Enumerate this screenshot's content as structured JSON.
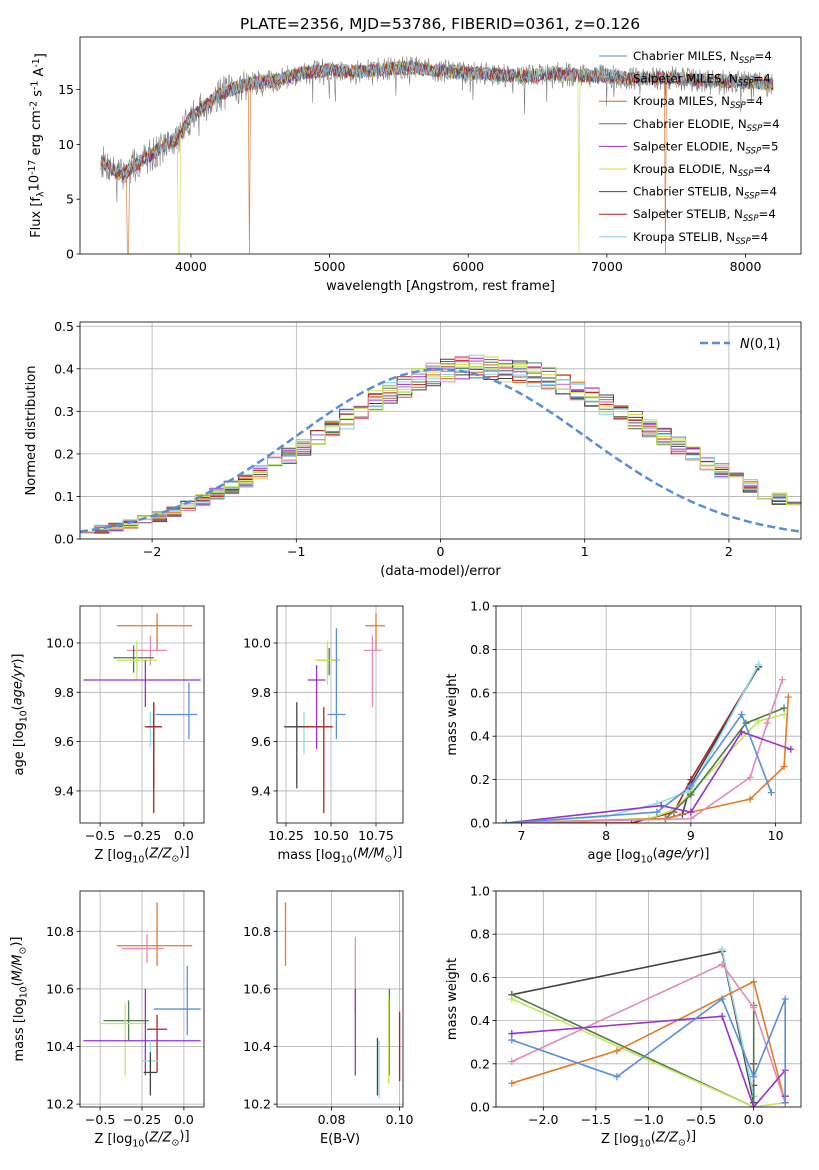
{
  "suptitle": "PLATE=2356, MJD=53786, FIBERID=0361, z=0.126",
  "colors": {
    "Chabrier MILES": "#5b8fb5",
    "Salpeter MILES": "#7f7f7f",
    "Kroupa MILES": "#d2691e",
    "Chabrier ELODIE": "#4f7a4f",
    "Salpeter ELODIE": "#9932cc",
    "Kroupa ELODIE": "#d6d64a",
    "Chabrier STELIB": "#444444",
    "Salpeter STELIB": "#b22222",
    "Kroupa STELIB": "#87ceeb",
    "gauss": "#5a8ed6",
    "est_blue": "#5a8ed6",
    "est_orange": "#e07b28",
    "est_pink": "#e38bb8",
    "est_green": "#4f7a4f",
    "est_purple": "#9932cc",
    "est_lime": "#c4e85a",
    "est_cyan": "#8fe0e8",
    "est_dark": "#444444",
    "est_red": "#b22222"
  },
  "chart_data": [
    {
      "id": "spectrum",
      "type": "line",
      "xlabel": "wavelength [Angstrom, rest frame]",
      "ylabel": "Flux [f$_\\lambda$10$^{-17}$ erg cm$^{-2}$ s$^{-1}$ A$^{-1}$]",
      "xlim": [
        3200,
        8400
      ],
      "ylim": [
        0,
        19.8
      ],
      "xticks": [
        4000,
        5000,
        6000,
        7000,
        8000
      ],
      "yticks": [
        0,
        5,
        10,
        15
      ],
      "grid": false,
      "legend_position": "upper right",
      "observed_envelope": {
        "x": [
          3350,
          3500,
          3700,
          3900,
          4000,
          4200,
          4400,
          4600,
          4800,
          5000,
          5200,
          5400,
          5600,
          5800,
          6000,
          6200,
          6400,
          6600,
          6800,
          7000,
          7200,
          7400,
          7600,
          7800,
          8000,
          8200
        ],
        "y": [
          8.5,
          7.2,
          9.0,
          10.5,
          12.5,
          14.5,
          15.5,
          15.8,
          16.5,
          16.8,
          16.6,
          16.9,
          17.0,
          16.7,
          16.5,
          16.4,
          16.2,
          16.5,
          16.3,
          16.2,
          16.0,
          16.1,
          15.9,
          15.8,
          15.7,
          15.5
        ]
      },
      "series": [
        {
          "name": "Chabrier MILES",
          "n_ssp": "4"
        },
        {
          "name": "Salpeter MILES",
          "n_ssp": "4"
        },
        {
          "name": "Kroupa MILES",
          "n_ssp": "4",
          "dropout_x": [
            3545,
            4420,
            7420
          ]
        },
        {
          "name": "Chabrier ELODIE",
          "n_ssp": "4"
        },
        {
          "name": "Salpeter ELODIE",
          "n_ssp": "5"
        },
        {
          "name": "Kroupa ELODIE",
          "n_ssp": "4",
          "dropout_x": [
            3915,
            6800
          ]
        },
        {
          "name": "Chabrier STELIB",
          "n_ssp": "4"
        },
        {
          "name": "Salpeter STELIB",
          "n_ssp": "4"
        },
        {
          "name": "Kroupa STELIB",
          "n_ssp": "4"
        }
      ]
    },
    {
      "id": "residual_hist",
      "type": "step",
      "xlabel": "(data-model)/error",
      "ylabel": "Normed distribution",
      "xlim": [
        -2.5,
        2.5
      ],
      "ylim": [
        0,
        0.51
      ],
      "xticks": [
        -2,
        -1,
        0,
        1,
        2
      ],
      "yticks": [
        0.0,
        0.1,
        0.2,
        0.3,
        0.4,
        0.5
      ],
      "grid": true,
      "legend_position": "upper right",
      "gauss_label": "$\\mathcal{N}(0,1)$",
      "bin_width": 0.1,
      "x_start": -2.5,
      "base_values": [
        0.018,
        0.022,
        0.028,
        0.035,
        0.043,
        0.053,
        0.065,
        0.078,
        0.091,
        0.106,
        0.121,
        0.138,
        0.156,
        0.175,
        0.195,
        0.216,
        0.238,
        0.26,
        0.282,
        0.303,
        0.324,
        0.342,
        0.359,
        0.373,
        0.385,
        0.394,
        0.4,
        0.404,
        0.402,
        0.398,
        0.394,
        0.386,
        0.376,
        0.364,
        0.35,
        0.335,
        0.318,
        0.3,
        0.28,
        0.26,
        0.24,
        0.22,
        0.199,
        0.18,
        0.16,
        0.142,
        0.125,
        0.109,
        0.094,
        0.08,
        0.066,
        0.054,
        0.044,
        0.036,
        0.029,
        0.024,
        0.02,
        0.017,
        0.015,
        0.014
      ]
    },
    {
      "id": "age_vs_Z",
      "type": "errorbar",
      "xlabel": "Z [log$_{10}$($Z/Z_\\odot$)]",
      "ylabel": "age  [log$_{10}$($age/yr$)]",
      "xlim": [
        -0.62,
        0.12
      ],
      "ylim": [
        9.27,
        10.15
      ],
      "xticks": [
        -0.5,
        -0.25,
        0.0
      ],
      "yticks": [
        9.4,
        9.6,
        9.8,
        10.0
      ],
      "grid": true,
      "points": [
        {
          "c": "est_orange",
          "x": -0.16,
          "xerr": [
            0.24,
            0.21
          ],
          "y": 10.07,
          "yerr": [
            0.1,
            0.05
          ]
        },
        {
          "c": "est_pink",
          "x": -0.2,
          "xerr": [
            0.14,
            0.1
          ],
          "y": 9.97,
          "yerr": [
            0.06,
            0.06
          ]
        },
        {
          "c": "est_green",
          "x": -0.3,
          "xerr": [
            0.12,
            0.12
          ],
          "y": 9.94,
          "yerr": [
            0.06,
            0.05
          ]
        },
        {
          "c": "est_lime",
          "x": -0.28,
          "xerr": [
            0.12,
            0.12
          ],
          "y": 9.93,
          "yerr": [
            0.08,
            0.08
          ]
        },
        {
          "c": "est_purple",
          "x": -0.23,
          "xerr": [
            0.37,
            0.33
          ],
          "y": 9.85,
          "yerr": [
            0.11,
            0.08
          ]
        },
        {
          "c": "est_blue",
          "x": 0.03,
          "xerr": [
            0.2,
            0.05
          ],
          "y": 9.71,
          "yerr": [
            0.1,
            0.13
          ]
        },
        {
          "c": "est_cyan",
          "x": -0.2,
          "xerr": [
            0.04,
            0.04
          ],
          "y": 9.66,
          "yerr": [
            0.08,
            0.06
          ]
        },
        {
          "c": "est_dark",
          "x": -0.18,
          "xerr": [
            0.03,
            0.03
          ],
          "y": 9.66,
          "yerr": [
            0.25,
            0.1
          ]
        },
        {
          "c": "est_red",
          "x": -0.18,
          "xerr": [
            0.05,
            0.05
          ],
          "y": 9.66,
          "yerr": [
            0.35,
            0.09
          ]
        }
      ]
    },
    {
      "id": "age_vs_mass",
      "type": "errorbar",
      "xlabel": "mass [log$_{10}$($M/M_\\odot$)]",
      "ylabel": "",
      "xlim": [
        10.2,
        10.9
      ],
      "ylim": [
        9.27,
        10.15
      ],
      "xticks": [
        10.25,
        10.5,
        10.75
      ],
      "yticks": [
        9.4,
        9.6,
        9.8,
        10.0
      ],
      "grid": true,
      "points": [
        {
          "c": "est_orange",
          "x": 10.75,
          "xerr": [
            0.06,
            0.05
          ],
          "y": 10.07,
          "yerr": [
            0.1,
            0.05
          ]
        },
        {
          "c": "est_pink",
          "x": 10.73,
          "xerr": [
            0.05,
            0.05
          ],
          "y": 9.97,
          "yerr": [
            0.23,
            0.06
          ]
        },
        {
          "c": "est_green",
          "x": 10.49,
          "xerr": [
            0.06,
            0.06
          ],
          "y": 9.93,
          "yerr": [
            0.06,
            0.05
          ]
        },
        {
          "c": "est_lime",
          "x": 10.48,
          "xerr": [
            0.07,
            0.07
          ],
          "y": 9.93,
          "yerr": [
            0.1,
            0.08
          ]
        },
        {
          "c": "est_purple",
          "x": 10.42,
          "xerr": [
            0.05,
            0.05
          ],
          "y": 9.85,
          "yerr": [
            0.28,
            0.06
          ]
        },
        {
          "c": "est_blue",
          "x": 10.53,
          "xerr": [
            0.05,
            0.05
          ],
          "y": 9.71,
          "yerr": [
            0.1,
            0.35
          ]
        },
        {
          "c": "est_cyan",
          "x": 10.35,
          "xerr": [
            0.07,
            0.07
          ],
          "y": 9.66,
          "yerr": [
            0.11,
            0.06
          ]
        },
        {
          "c": "est_dark",
          "x": 10.31,
          "xerr": [
            0.07,
            0.07
          ],
          "y": 9.66,
          "yerr": [
            0.25,
            0.1
          ]
        },
        {
          "c": "est_red",
          "x": 10.46,
          "xerr": [
            0.13,
            0.05
          ],
          "y": 9.66,
          "yerr": [
            0.35,
            0.08
          ]
        }
      ]
    },
    {
      "id": "massweight_vs_age",
      "type": "line",
      "xlabel": "age  [log$_{10}$($age/yr$)]",
      "ylabel": "mass weight",
      "xlim": [
        6.7,
        10.3
      ],
      "ylim": [
        0,
        1.0
      ],
      "xticks": [
        7,
        8,
        9,
        10
      ],
      "yticks": [
        0.0,
        0.2,
        0.4,
        0.6,
        0.8,
        1.0
      ],
      "grid": true,
      "series": [
        {
          "c": "Salpeter STELIB",
          "x": [
            6.82,
            8.3,
            8.8,
            9.0,
            9.8
          ],
          "y": [
            0.0,
            0.0,
            0.05,
            0.2,
            0.72
          ]
        },
        {
          "c": "Chabrier STELIB",
          "x": [
            6.82,
            8.7,
            8.9,
            9.0,
            9.8
          ],
          "y": [
            0.0,
            0.02,
            0.04,
            0.18,
            0.72
          ]
        },
        {
          "c": "est_cyan",
          "x": [
            6.82,
            8.0,
            8.6,
            9.0,
            9.8
          ],
          "y": [
            0.0,
            0.03,
            0.09,
            0.15,
            0.73
          ]
        },
        {
          "c": "est_lime",
          "x": [
            6.82,
            8.5,
            8.8,
            9.0,
            9.8,
            10.1
          ],
          "y": [
            0.0,
            0.02,
            0.06,
            0.14,
            0.47,
            0.5
          ]
        },
        {
          "c": "est_green",
          "x": [
            6.82,
            8.7,
            9.0,
            9.65,
            10.1
          ],
          "y": [
            0.0,
            0.02,
            0.13,
            0.46,
            0.53
          ]
        },
        {
          "c": "est_orange",
          "x": [
            6.82,
            8.7,
            9.0,
            9.7,
            10.1,
            10.15
          ],
          "y": [
            0.0,
            0.02,
            0.05,
            0.11,
            0.26,
            0.58
          ]
        },
        {
          "c": "est_pink",
          "x": [
            6.82,
            9.0,
            9.7,
            9.9,
            10.08
          ],
          "y": [
            0.0,
            0.02,
            0.21,
            0.46,
            0.66
          ]
        },
        {
          "c": "est_purple",
          "x": [
            6.82,
            8.65,
            9.0,
            9.6,
            10.18
          ],
          "y": [
            0.0,
            0.08,
            0.05,
            0.42,
            0.34
          ]
        },
        {
          "c": "est_blue",
          "x": [
            6.82,
            8.6,
            9.0,
            9.6,
            9.95
          ],
          "y": [
            0.0,
            0.05,
            0.17,
            0.5,
            0.14
          ]
        }
      ]
    },
    {
      "id": "mass_vs_Z",
      "type": "errorbar",
      "xlabel": "Z [log$_{10}$($Z/Z_\\odot$)]",
      "ylabel": "mass [log$_{10}$($M/M_\\odot$)]",
      "xlim": [
        -0.62,
        0.12
      ],
      "ylim": [
        10.19,
        10.94
      ],
      "xticks": [
        -0.5,
        -0.25,
        0.0
      ],
      "yticks": [
        10.2,
        10.4,
        10.6,
        10.8
      ],
      "grid": true,
      "points": [
        {
          "c": "est_orange",
          "x": -0.16,
          "xerr": [
            0.24,
            0.21
          ],
          "y": 10.75,
          "yerr": [
            0.07,
            0.15
          ]
        },
        {
          "c": "est_pink",
          "x": -0.22,
          "xerr": [
            0.15,
            0.1
          ],
          "y": 10.74,
          "yerr": [
            0.05,
            0.05
          ]
        },
        {
          "c": "est_blue",
          "x": 0.02,
          "xerr": [
            0.2,
            0.08
          ],
          "y": 10.53,
          "yerr": [
            0.09,
            0.15
          ]
        },
        {
          "c": "est_green",
          "x": -0.33,
          "xerr": [
            0.15,
            0.12
          ],
          "y": 10.49,
          "yerr": [
            0.07,
            0.07
          ]
        },
        {
          "c": "est_lime",
          "x": -0.35,
          "xerr": [
            0.15,
            0.13
          ],
          "y": 10.48,
          "yerr": [
            0.18,
            0.07
          ]
        },
        {
          "c": "est_red",
          "x": -0.16,
          "xerr": [
            0.06,
            0.06
          ],
          "y": 10.46,
          "yerr": [
            0.15,
            0.05
          ]
        },
        {
          "c": "est_purple",
          "x": -0.23,
          "xerr": [
            0.37,
            0.33
          ],
          "y": 10.42,
          "yerr": [
            0.12,
            0.18
          ]
        },
        {
          "c": "est_cyan",
          "x": -0.2,
          "xerr": [
            0.05,
            0.05
          ],
          "y": 10.35,
          "yerr": [
            0.07,
            0.07
          ]
        },
        {
          "c": "est_dark",
          "x": -0.2,
          "xerr": [
            0.04,
            0.04
          ],
          "y": 10.31,
          "yerr": [
            0.08,
            0.07
          ]
        }
      ]
    },
    {
      "id": "mass_vs_ebv",
      "type": "errorbar",
      "xlabel": "E(B-V)",
      "ylabel": "",
      "xlim": [
        0.064,
        0.101
      ],
      "ylim": [
        10.19,
        10.94
      ],
      "xticks": [
        0.08,
        0.1
      ],
      "yticks": [
        10.2,
        10.4,
        10.6,
        10.8
      ],
      "grid": true,
      "points": [
        {
          "c": "est_orange",
          "x": 0.0665,
          "xerr": [
            0,
            0
          ],
          "y": 10.79,
          "yerr": [
            0.11,
            0.11
          ]
        },
        {
          "c": "est_pink",
          "x": 0.087,
          "xerr": [
            0,
            0
          ],
          "y": 10.65,
          "yerr": [
            0.13,
            0.13
          ]
        },
        {
          "c": "est_purple",
          "x": 0.087,
          "xerr": [
            0,
            0
          ],
          "y": 10.45,
          "yerr": [
            0.15,
            0.15
          ]
        },
        {
          "c": "est_dark",
          "x": 0.0935,
          "xerr": [
            0,
            0
          ],
          "y": 10.33,
          "yerr": [
            0.1,
            0.1
          ]
        },
        {
          "c": "est_cyan",
          "x": 0.094,
          "xerr": [
            0,
            0
          ],
          "y": 10.32,
          "yerr": [
            0.1,
            0.1
          ]
        },
        {
          "c": "est_green",
          "x": 0.097,
          "xerr": [
            0,
            0
          ],
          "y": 10.45,
          "yerr": [
            0.15,
            0.15
          ]
        },
        {
          "c": "est_lime",
          "x": 0.0968,
          "xerr": [
            0,
            0
          ],
          "y": 10.42,
          "yerr": [
            0.15,
            0.15
          ]
        },
        {
          "c": "est_red",
          "x": 0.1,
          "xerr": [
            0,
            0
          ],
          "y": 10.4,
          "yerr": [
            0.12,
            0.12
          ]
        }
      ]
    },
    {
      "id": "massweight_vs_Z",
      "type": "line",
      "xlabel": "Z [log$_{10}$($Z/Z_\\odot$)]",
      "ylabel": "mass weight",
      "xlim": [
        -2.45,
        0.45
      ],
      "ylim": [
        0,
        1.0
      ],
      "xticks": [
        -2.0,
        -1.5,
        -1.0,
        -0.5,
        0.0
      ],
      "yticks": [
        0.0,
        0.2,
        0.4,
        0.6,
        0.8,
        1.0
      ],
      "grid": true,
      "series": [
        {
          "c": "Chabrier STELIB",
          "x": [
            -2.3,
            -0.3,
            0.0,
            0.0
          ],
          "y": [
            0.52,
            0.72,
            0.02,
            0.1
          ]
        },
        {
          "c": "Salpeter STELIB",
          "x": [
            -0.3,
            0.0,
            0.0
          ],
          "y": [
            0.72,
            0.05,
            0.2
          ]
        },
        {
          "c": "est_cyan",
          "x": [
            -0.3,
            0.0,
            0.0
          ],
          "y": [
            0.73,
            0.05,
            0.15
          ]
        },
        {
          "c": "est_green",
          "x": [
            -2.3,
            0.0,
            0.0
          ],
          "y": [
            0.52,
            0.0,
            0.47
          ]
        },
        {
          "c": "est_lime",
          "x": [
            -2.3,
            0.0,
            0.3,
            0.3
          ],
          "y": [
            0.5,
            0.0,
            0.02,
            0.05
          ]
        },
        {
          "c": "est_orange",
          "x": [
            -2.3,
            -1.3,
            0.0,
            0.3,
            0.3
          ],
          "y": [
            0.11,
            0.26,
            0.58,
            0.02,
            0.05
          ]
        },
        {
          "c": "est_pink",
          "x": [
            -2.3,
            -0.3,
            0.0,
            0.3
          ],
          "y": [
            0.21,
            0.66,
            0.46,
            0.02
          ]
        },
        {
          "c": "est_purple",
          "x": [
            -2.3,
            -0.3,
            0.0,
            0.3,
            0.3
          ],
          "y": [
            0.34,
            0.42,
            0.0,
            0.17,
            0.05
          ]
        },
        {
          "c": "est_blue",
          "x": [
            -2.3,
            -1.3,
            -0.3,
            0.0,
            0.3,
            0.3
          ],
          "y": [
            0.31,
            0.14,
            0.5,
            0.14,
            0.5,
            0.02
          ]
        }
      ]
    }
  ]
}
